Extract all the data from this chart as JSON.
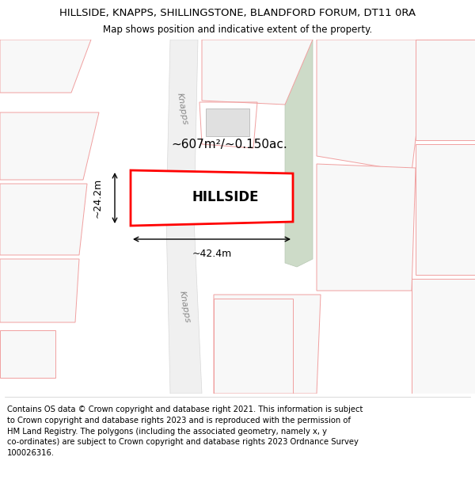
{
  "title": "HILLSIDE, KNAPPS, SHILLINGSTONE, BLANDFORD FORUM, DT11 0RA",
  "subtitle": "Map shows position and indicative extent of the property.",
  "footer_text": "Contains OS data © Crown copyright and database right 2021. This information is subject\nto Crown copyright and database rights 2023 and is reproduced with the permission of\nHM Land Registry. The polygons (including the associated geometry, namely x, y\nco-ordinates) are subject to Crown copyright and database rights 2023 Ordnance Survey\n100026316.",
  "property_name": "HILLSIDE",
  "area_text": "~607m²/~0.150ac.",
  "width_text": "~42.4m",
  "height_text": "~24.2m",
  "bg_color": "#f5f5f5",
  "building_fill": "#e0e0e0",
  "building_edge": "#c0c0c0",
  "parcel_edge": "#f0a0a0",
  "parcel_edge2": "#e88888",
  "plot_edge": "#ff0000",
  "green_fill": "#cddbc8",
  "green_edge": "#b8c8b4",
  "road_fill": "#ffffff",
  "annot_color": "#000000",
  "road_label_color": "#888888",
  "title_fontsize": 9.5,
  "subtitle_fontsize": 8.5,
  "footer_fontsize": 7.2,
  "propname_fontsize": 12,
  "area_fontsize": 11,
  "dim_fontsize": 9
}
